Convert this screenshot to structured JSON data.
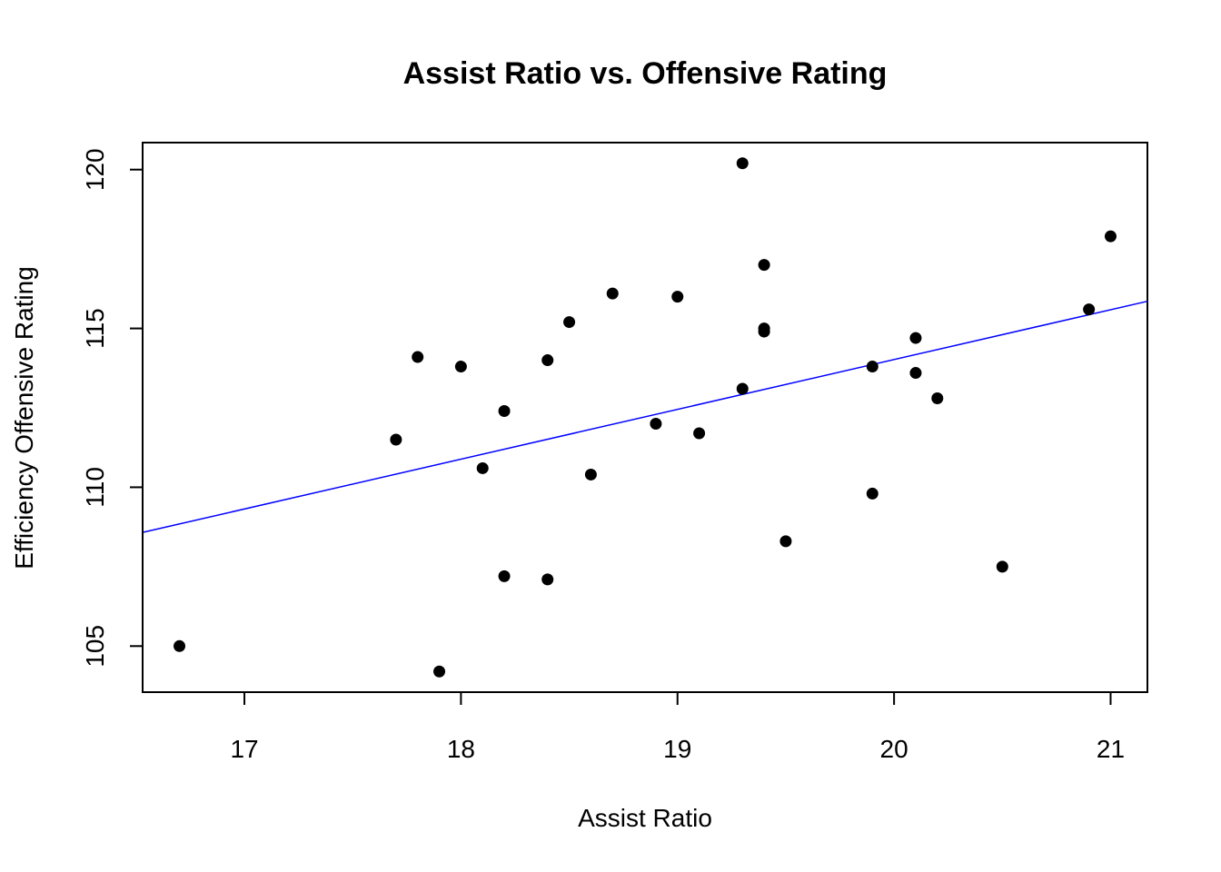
{
  "chart_data": {
    "type": "scatter",
    "title": "Assist Ratio vs. Offensive Rating",
    "xlabel": "Assist Ratio",
    "ylabel": "Efficiency Offensive Rating",
    "xlim": [
      16.53,
      21.17
    ],
    "ylim": [
      103.55,
      120.85
    ],
    "xticks": [
      17,
      18,
      19,
      20,
      21
    ],
    "yticks": [
      105,
      110,
      115,
      120
    ],
    "grid": false,
    "point_color": "#000000",
    "line_color": "#0000ff",
    "points": [
      {
        "x": 16.7,
        "y": 105.0
      },
      {
        "x": 17.7,
        "y": 111.5
      },
      {
        "x": 17.8,
        "y": 114.1
      },
      {
        "x": 17.9,
        "y": 104.2
      },
      {
        "x": 18.0,
        "y": 113.8
      },
      {
        "x": 18.1,
        "y": 110.6
      },
      {
        "x": 18.2,
        "y": 112.4
      },
      {
        "x": 18.2,
        "y": 107.2
      },
      {
        "x": 18.4,
        "y": 114.0
      },
      {
        "x": 18.4,
        "y": 107.1
      },
      {
        "x": 18.5,
        "y": 115.2
      },
      {
        "x": 18.6,
        "y": 110.4
      },
      {
        "x": 18.7,
        "y": 116.1
      },
      {
        "x": 18.9,
        "y": 112.0
      },
      {
        "x": 19.0,
        "y": 116.0
      },
      {
        "x": 19.1,
        "y": 111.7
      },
      {
        "x": 19.3,
        "y": 120.2
      },
      {
        "x": 19.3,
        "y": 113.1
      },
      {
        "x": 19.4,
        "y": 117.0
      },
      {
        "x": 19.4,
        "y": 115.0
      },
      {
        "x": 19.4,
        "y": 114.9
      },
      {
        "x": 19.5,
        "y": 108.3
      },
      {
        "x": 19.9,
        "y": 113.8
      },
      {
        "x": 19.9,
        "y": 109.8
      },
      {
        "x": 20.1,
        "y": 114.7
      },
      {
        "x": 20.1,
        "y": 113.6
      },
      {
        "x": 20.2,
        "y": 112.8
      },
      {
        "x": 20.5,
        "y": 107.5
      },
      {
        "x": 20.9,
        "y": 115.6
      },
      {
        "x": 21.0,
        "y": 117.9
      }
    ],
    "regression_line": {
      "intercept": 82.66,
      "slope": 1.568
    }
  }
}
